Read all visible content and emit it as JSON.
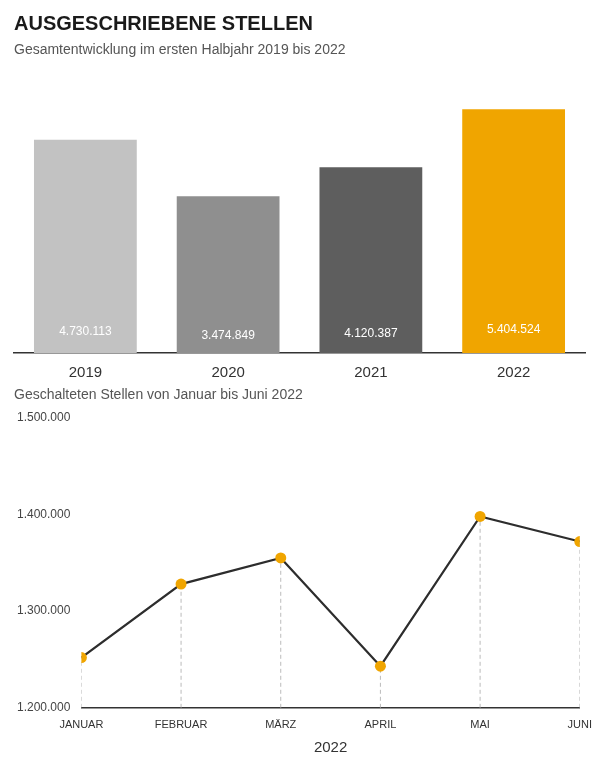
{
  "chart_data": [
    {
      "type": "bar",
      "title": "AUSGESCHRIEBENE STELLEN",
      "subtitle": "Gesamtentwicklung im ersten Halbjahr 2019 bis 2022",
      "categories": [
        "2019",
        "2020",
        "2021",
        "2022"
      ],
      "values": [
        4730113,
        3474849,
        4120387,
        5404524
      ],
      "value_labels": [
        "4.730.113",
        "3.474.849",
        "4.120.387",
        "5.404.524"
      ],
      "colors": [
        "#c2c2c2",
        "#8f8f8f",
        "#5e5e5e",
        "#f0a500"
      ],
      "ylim": [
        0,
        6215202.6
      ],
      "data_labels": true,
      "tick_labels": "x",
      "grid": false
    },
    {
      "type": "line",
      "subtitle": "Geschalteten Stellen von Januar bis Juni 2022",
      "categories": [
        "JANUAR",
        "FEBRUAR",
        "MÄRZ",
        "APRIL",
        "MAI",
        "JUNI"
      ],
      "values": [
        1252000,
        1328000,
        1355000,
        1243000,
        1398000,
        1372000
      ],
      "color": "#2d2d2d",
      "colors": [
        "#f0a500",
        "#f0a500",
        "#f0a500",
        "#f0a500",
        "#f0a500",
        "#f0a500"
      ],
      "marker": "circle",
      "xlabel": "2022",
      "ylim": [
        1200000,
        1500000
      ],
      "yticks": [
        {
          "value": 1200000,
          "label": "1.200.000"
        },
        {
          "value": 1300000,
          "label": "1.300.000"
        },
        {
          "value": 1400000,
          "label": "1.400.000"
        },
        {
          "value": 1500000,
          "label": "1.500.000"
        }
      ],
      "grid": false
    }
  ]
}
